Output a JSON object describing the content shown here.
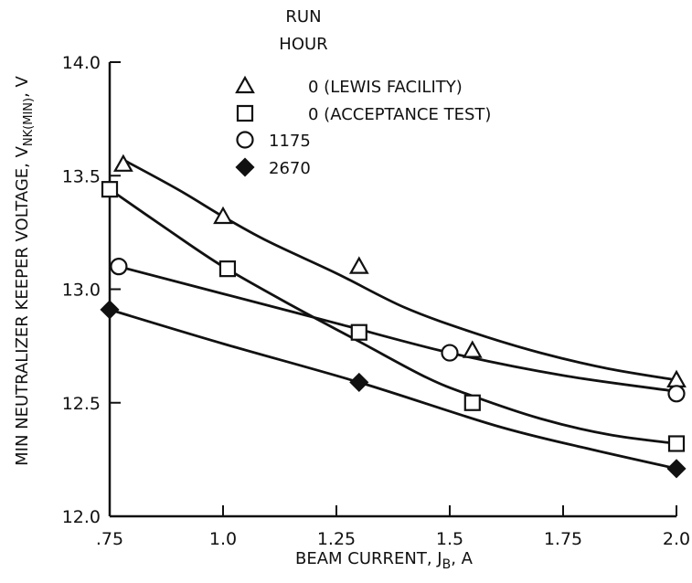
{
  "chart_data": {
    "type": "line",
    "title": "",
    "xlabel": "BEAM CURRENT, J",
    "xlabel_sub": "B",
    "xlabel_unit": ", A",
    "ylabel": "MIN NEUTRALIZER KEEPER VOLTAGE, V",
    "ylabel_sub": "NK(MIN)",
    "ylabel_unit": ", V",
    "xlim": [
      0.75,
      2.0
    ],
    "ylim": [
      12.0,
      14.0
    ],
    "x_ticks": [
      {
        "value": 0.75,
        "label": ".75"
      },
      {
        "value": 1.0,
        "label": "1.0"
      },
      {
        "value": 1.25,
        "label": "1.25"
      },
      {
        "value": 1.5,
        "label": "1.5"
      },
      {
        "value": 1.75,
        "label": "1.75"
      },
      {
        "value": 2.0,
        "label": "2.0"
      }
    ],
    "y_ticks": [
      {
        "value": 12.0,
        "label": "12.0"
      },
      {
        "value": 12.5,
        "label": "12.5"
      },
      {
        "value": 13.0,
        "label": "13.0"
      },
      {
        "value": 13.5,
        "label": "13.5"
      },
      {
        "value": 14.0,
        "label": "14.0"
      }
    ],
    "grid": false,
    "legend": {
      "title_line1": "RUN",
      "title_line2": "HOUR",
      "placement": "top-right"
    },
    "series": [
      {
        "name": "0 (LEWIS FACILITY)",
        "marker": "triangle-open",
        "points": [
          [
            0.78,
            13.55
          ],
          [
            1.0,
            13.32
          ],
          [
            1.3,
            13.1
          ],
          [
            1.55,
            12.73
          ],
          [
            2.0,
            12.6
          ]
        ],
        "fit": [
          [
            0.78,
            13.57
          ],
          [
            0.9,
            13.44
          ],
          [
            1.0,
            13.32
          ],
          [
            1.1,
            13.21
          ],
          [
            1.25,
            13.07
          ],
          [
            1.4,
            12.92
          ],
          [
            1.55,
            12.81
          ],
          [
            1.7,
            12.72
          ],
          [
            1.85,
            12.65
          ],
          [
            2.0,
            12.6
          ]
        ]
      },
      {
        "name": "0 (ACCEPTANCE TEST)",
        "marker": "square-open",
        "points": [
          [
            0.75,
            13.44
          ],
          [
            1.01,
            13.09
          ],
          [
            1.3,
            12.81
          ],
          [
            1.55,
            12.5
          ],
          [
            2.0,
            12.32
          ]
        ],
        "fit": [
          [
            0.75,
            13.44
          ],
          [
            0.88,
            13.26
          ],
          [
            1.0,
            13.1
          ],
          [
            1.15,
            12.93
          ],
          [
            1.3,
            12.77
          ],
          [
            1.45,
            12.61
          ],
          [
            1.55,
            12.53
          ],
          [
            1.7,
            12.43
          ],
          [
            1.85,
            12.36
          ],
          [
            2.0,
            12.32
          ]
        ]
      },
      {
        "name": "1175",
        "marker": "circle-open",
        "points": [
          [
            0.77,
            13.1
          ],
          [
            1.5,
            12.72
          ],
          [
            2.0,
            12.54
          ]
        ],
        "fit": [
          [
            0.77,
            13.1
          ],
          [
            1.0,
            12.98
          ],
          [
            1.25,
            12.85
          ],
          [
            1.5,
            12.72
          ],
          [
            1.75,
            12.62
          ],
          [
            2.0,
            12.55
          ]
        ]
      },
      {
        "name": "2670",
        "marker": "diamond-filled",
        "points": [
          [
            0.75,
            12.91
          ],
          [
            1.3,
            12.59
          ],
          [
            2.0,
            12.21
          ]
        ],
        "fit": [
          [
            0.75,
            12.91
          ],
          [
            1.0,
            12.76
          ],
          [
            1.3,
            12.59
          ],
          [
            1.6,
            12.4
          ],
          [
            1.8,
            12.3
          ],
          [
            2.0,
            12.21
          ]
        ]
      }
    ]
  }
}
